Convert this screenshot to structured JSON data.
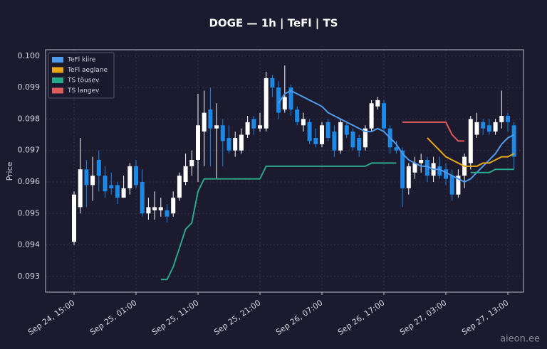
{
  "chart_data": {
    "type": "candlestick",
    "title": "DOGE — 1h  |  TeFl  |  TS",
    "y_label": "Price",
    "watermark": "aieon.ee",
    "categories": [
      "Sep 24, 15:00",
      "Sep 24, 16:00",
      "Sep 24, 17:00",
      "Sep 24, 18:00",
      "Sep 24, 19:00",
      "Sep 24, 20:00",
      "Sep 24, 21:00",
      "Sep 24, 22:00",
      "Sep 24, 23:00",
      "Sep 25, 00:00",
      "Sep 25, 01:00",
      "Sep 25, 02:00",
      "Sep 25, 03:00",
      "Sep 25, 04:00",
      "Sep 25, 05:00",
      "Sep 25, 06:00",
      "Sep 25, 07:00",
      "Sep 25, 08:00",
      "Sep 25, 09:00",
      "Sep 25, 10:00",
      "Sep 25, 11:00",
      "Sep 25, 12:00",
      "Sep 25, 13:00",
      "Sep 25, 14:00",
      "Sep 25, 15:00",
      "Sep 25, 16:00",
      "Sep 25, 17:00",
      "Sep 25, 18:00",
      "Sep 25, 19:00",
      "Sep 25, 20:00",
      "Sep 25, 21:00",
      "Sep 25, 22:00",
      "Sep 25, 23:00",
      "Sep 26, 00:00",
      "Sep 26, 01:00",
      "Sep 26, 02:00",
      "Sep 26, 03:00",
      "Sep 26, 04:00",
      "Sep 26, 05:00",
      "Sep 26, 06:00",
      "Sep 26, 07:00",
      "Sep 26, 08:00",
      "Sep 26, 09:00",
      "Sep 26, 10:00",
      "Sep 26, 11:00",
      "Sep 26, 12:00",
      "Sep 26, 13:00",
      "Sep 26, 14:00",
      "Sep 26, 15:00",
      "Sep 26, 16:00",
      "Sep 26, 17:00",
      "Sep 26, 18:00",
      "Sep 26, 19:00",
      "Sep 26, 20:00",
      "Sep 26, 21:00",
      "Sep 26, 22:00",
      "Sep 26, 23:00",
      "Sep 27, 00:00",
      "Sep 27, 01:00",
      "Sep 27, 02:00",
      "Sep 27, 03:00",
      "Sep 27, 04:00",
      "Sep 27, 05:00",
      "Sep 27, 06:00",
      "Sep 27, 07:00",
      "Sep 27, 08:00",
      "Sep 27, 09:00",
      "Sep 27, 10:00",
      "Sep 27, 11:00",
      "Sep 27, 12:00",
      "Sep 27, 13:00",
      "Sep 27, 14:00"
    ],
    "open": [
      0.0941,
      0.0952,
      0.0964,
      0.0959,
      0.0967,
      0.0962,
      0.0959,
      0.0959,
      0.0955,
      0.0958,
      0.0965,
      0.096,
      0.095,
      0.0951,
      0.0951,
      0.0951,
      0.095,
      0.0955,
      0.096,
      0.0965,
      0.0967,
      0.0976,
      0.0983,
      0.0977,
      0.0978,
      0.0974,
      0.097,
      0.097,
      0.0975,
      0.098,
      0.0977,
      0.0977,
      0.0993,
      0.099,
      0.0983,
      0.099,
      0.0983,
      0.0978,
      0.0979,
      0.0974,
      0.0972,
      0.0979,
      0.0976,
      0.097,
      0.0978,
      0.0976,
      0.0974,
      0.0971,
      0.0977,
      0.0984,
      0.0985,
      0.0977,
      0.0971,
      0.097,
      0.0958,
      0.0963,
      0.0966,
      0.0967,
      0.0962,
      0.0965,
      0.0964,
      0.0962,
      0.0956,
      0.0962,
      0.0966,
      0.0975,
      0.0979,
      0.0978,
      0.0976,
      0.0979,
      0.0981,
      0.0978
    ],
    "high": [
      0.0957,
      0.0974,
      0.0967,
      0.0968,
      0.097,
      0.0965,
      0.0963,
      0.096,
      0.0962,
      0.0966,
      0.0967,
      0.0964,
      0.0955,
      0.0957,
      0.0955,
      0.0953,
      0.0957,
      0.0963,
      0.0969,
      0.097,
      0.0988,
      0.0989,
      0.099,
      0.0985,
      0.098,
      0.0978,
      0.0976,
      0.0977,
      0.0981,
      0.0981,
      0.0982,
      0.0995,
      0.0994,
      0.0992,
      0.0997,
      0.0991,
      0.0984,
      0.0982,
      0.098,
      0.0977,
      0.0979,
      0.098,
      0.0978,
      0.098,
      0.0979,
      0.0977,
      0.0975,
      0.0978,
      0.0986,
      0.0987,
      0.0986,
      0.0978,
      0.0973,
      0.0971,
      0.0966,
      0.0968,
      0.0969,
      0.0968,
      0.0968,
      0.0968,
      0.0966,
      0.0964,
      0.0964,
      0.0969,
      0.0981,
      0.0982,
      0.098,
      0.098,
      0.098,
      0.0989,
      0.0982,
      0.0979
    ],
    "low": [
      0.094,
      0.095,
      0.0952,
      0.0954,
      0.0957,
      0.0955,
      0.0956,
      0.0953,
      0.0955,
      0.0956,
      0.0958,
      0.0949,
      0.0948,
      0.0948,
      0.0949,
      0.0947,
      0.0949,
      0.0954,
      0.0959,
      0.0962,
      0.096,
      0.0965,
      0.0965,
      0.0961,
      0.0965,
      0.0969,
      0.0968,
      0.0969,
      0.0974,
      0.0975,
      0.0976,
      0.0976,
      0.0987,
      0.098,
      0.0982,
      0.0981,
      0.0978,
      0.0976,
      0.0972,
      0.0971,
      0.0971,
      0.0973,
      0.0968,
      0.0969,
      0.0974,
      0.097,
      0.0968,
      0.097,
      0.0976,
      0.0983,
      0.0976,
      0.0969,
      0.0969,
      0.0952,
      0.0956,
      0.0961,
      0.0963,
      0.096,
      0.096,
      0.0961,
      0.0959,
      0.0954,
      0.0955,
      0.0958,
      0.0964,
      0.0974,
      0.0975,
      0.0975,
      0.0975,
      0.0977,
      0.0976,
      0.0964
    ],
    "close": [
      0.0956,
      0.0964,
      0.0959,
      0.0962,
      0.0962,
      0.0957,
      0.0958,
      0.0955,
      0.0958,
      0.0965,
      0.0959,
      0.095,
      0.0952,
      0.0952,
      0.0952,
      0.0949,
      0.0955,
      0.0962,
      0.0965,
      0.0967,
      0.0978,
      0.0982,
      0.0977,
      0.0978,
      0.0973,
      0.097,
      0.0974,
      0.0975,
      0.0979,
      0.0977,
      0.0978,
      0.0993,
      0.099,
      0.0982,
      0.0987,
      0.0983,
      0.0979,
      0.098,
      0.0973,
      0.0972,
      0.0978,
      0.0974,
      0.097,
      0.0979,
      0.0975,
      0.0971,
      0.097,
      0.0977,
      0.0985,
      0.0986,
      0.0977,
      0.0971,
      0.097,
      0.0958,
      0.0965,
      0.0966,
      0.0967,
      0.0962,
      0.0966,
      0.0962,
      0.0961,
      0.0956,
      0.0962,
      0.0968,
      0.098,
      0.0979,
      0.0977,
      0.0976,
      0.0979,
      0.0981,
      0.0979,
      0.0968
    ],
    "up_color": "#ffffff",
    "down_color": "#1e88e5",
    "series": [
      {
        "name": "TeFl kiire",
        "color": "#4f9bea",
        "values": [
          null,
          null,
          null,
          null,
          null,
          null,
          null,
          null,
          null,
          null,
          null,
          null,
          null,
          null,
          null,
          null,
          null,
          null,
          null,
          null,
          null,
          null,
          null,
          null,
          null,
          null,
          null,
          null,
          null,
          null,
          null,
          null,
          null,
          0.0985,
          0.0988,
          0.0989,
          0.0988,
          0.0987,
          0.0986,
          0.0985,
          0.0984,
          0.0982,
          0.0981,
          0.098,
          0.0979,
          0.0978,
          0.0977,
          0.0976,
          0.0976,
          0.0977,
          0.0976,
          0.0974,
          0.0972,
          0.0969,
          0.0967,
          0.0966,
          0.0965,
          0.0965,
          0.0964,
          0.0964,
          0.0963,
          0.0962,
          0.0961,
          0.096,
          0.0961,
          0.0963,
          0.0965,
          0.0967,
          0.0969,
          0.0972,
          0.0974,
          0.0975
        ]
      },
      {
        "name": "TeFl aeglane",
        "color": "#e6a817",
        "values": [
          null,
          null,
          null,
          null,
          null,
          null,
          null,
          null,
          null,
          null,
          null,
          null,
          null,
          null,
          null,
          null,
          null,
          null,
          null,
          null,
          null,
          null,
          null,
          null,
          null,
          null,
          null,
          null,
          null,
          null,
          null,
          null,
          null,
          null,
          null,
          null,
          null,
          null,
          null,
          null,
          null,
          null,
          null,
          null,
          null,
          null,
          null,
          null,
          null,
          null,
          null,
          null,
          null,
          null,
          null,
          null,
          null,
          0.0974,
          0.0972,
          0.097,
          0.0968,
          0.0967,
          0.0966,
          0.0965,
          0.0965,
          0.0965,
          0.0966,
          0.0966,
          0.0967,
          0.0968,
          0.0968,
          0.0969
        ]
      },
      {
        "name": "TS tõusev",
        "color": "#2aa88a",
        "values": [
          null,
          null,
          null,
          null,
          null,
          null,
          null,
          null,
          null,
          null,
          null,
          null,
          null,
          null,
          0.0929,
          0.0929,
          0.0933,
          0.0939,
          0.0945,
          0.0947,
          0.0957,
          0.0961,
          0.0961,
          0.0961,
          0.0961,
          0.0961,
          0.0961,
          0.0961,
          0.0961,
          0.0961,
          0.0961,
          0.0965,
          0.0965,
          0.0965,
          0.0965,
          0.0965,
          0.0965,
          0.0965,
          0.0965,
          0.0965,
          0.0965,
          0.0965,
          0.0965,
          0.0965,
          0.0965,
          0.0965,
          0.0965,
          0.0965,
          0.0966,
          0.0966,
          0.0966,
          0.0966,
          0.0966,
          null,
          null,
          null,
          null,
          null,
          null,
          null,
          null,
          null,
          null,
          null,
          0.0963,
          0.0963,
          0.0963,
          0.0963,
          0.0964,
          0.0964,
          0.0964,
          0.0964
        ]
      },
      {
        "name": "TS langev",
        "color": "#e05c5c",
        "values": [
          null,
          null,
          null,
          null,
          null,
          null,
          null,
          null,
          null,
          null,
          null,
          null,
          null,
          null,
          null,
          null,
          null,
          null,
          null,
          null,
          null,
          null,
          null,
          null,
          null,
          null,
          null,
          null,
          null,
          null,
          null,
          null,
          null,
          null,
          null,
          null,
          null,
          null,
          null,
          null,
          null,
          null,
          null,
          null,
          null,
          null,
          null,
          null,
          null,
          null,
          null,
          null,
          null,
          0.0979,
          0.0979,
          0.0979,
          0.0979,
          0.0979,
          0.0979,
          0.0979,
          0.0979,
          0.0975,
          0.0973,
          0.0973,
          null,
          null,
          null,
          null,
          null,
          null,
          null,
          null
        ]
      }
    ],
    "ylim": [
      0.0925,
      0.1002
    ],
    "yticks": [
      0.093,
      0.094,
      0.095,
      0.096,
      0.097,
      0.098,
      0.099,
      {
        "value": 0.1,
        "label": "0.100"
      }
    ],
    "xticks": [
      "Sep 24, 15:00",
      "Sep 25, 01:00",
      "Sep 25, 11:00",
      "Sep 25, 21:00",
      "Sep 26, 07:00",
      "Sep 26, 17:00",
      "Sep 27, 03:00",
      "Sep 27, 13:00"
    ],
    "grid": true,
    "legend": "upper left"
  }
}
